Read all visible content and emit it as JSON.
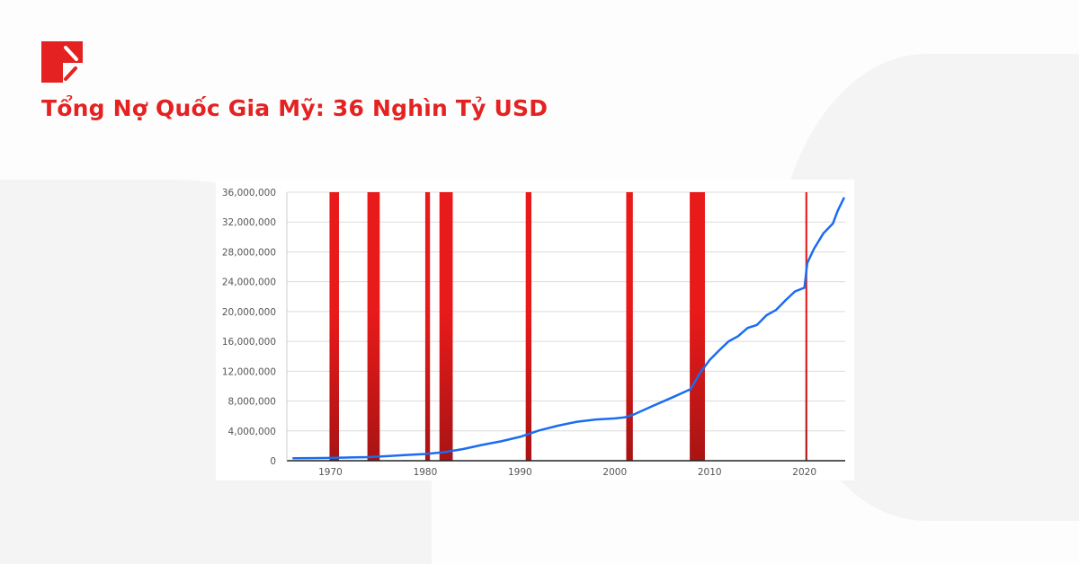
{
  "header": {
    "title": "Tổng Nợ Quốc Gia Mỹ: 36 Nghìn Tỷ USD",
    "brand_color": "#e42222"
  },
  "chart_data": {
    "type": "line",
    "title": "",
    "xlabel": "",
    "ylabel": "",
    "xlim": [
      1965.4,
      2024.3
    ],
    "ylim": [
      0,
      36000000
    ],
    "grid": true,
    "x_ticks": [
      "1970",
      "1980",
      "1990",
      "2000",
      "2010",
      "2020"
    ],
    "y_ticks": [
      "0",
      "4,000,000",
      "8,000,000",
      "12,000,000",
      "16,000,000",
      "20,000,000",
      "24,000,000",
      "28,000,000",
      "32,000,000",
      "36,000,000"
    ],
    "line_color": "#1a6cf0",
    "recession_color": "#e81a1a",
    "recessions": [
      [
        1969.9,
        1970.9
      ],
      [
        1973.9,
        1975.2
      ],
      [
        1980.0,
        1980.5
      ],
      [
        1981.5,
        1982.9
      ],
      [
        1990.6,
        1991.2
      ],
      [
        2001.2,
        2001.9
      ],
      [
        2007.9,
        2009.5
      ],
      [
        2020.1,
        2020.3
      ]
    ],
    "series": [
      {
        "x": [
          1966,
          1968,
          1970,
          1972,
          1974,
          1976,
          1978,
          1980,
          1982,
          1984,
          1986,
          1988,
          1990,
          1992,
          1994,
          1996,
          1998,
          2000,
          2001,
          2002,
          2004,
          2006,
          2008,
          2009,
          2010,
          2011,
          2012,
          2013,
          2014,
          2015,
          2016,
          2017,
          2018,
          2019,
          2020,
          2020.3,
          2021,
          2022,
          2023,
          2023.5,
          2024.2
        ],
        "y": [
          320000,
          350000,
          370000,
          430000,
          480000,
          620000,
          770000,
          900000,
          1140000,
          1570000,
          2120000,
          2600000,
          3200000,
          4060000,
          4690000,
          5220000,
          5530000,
          5670000,
          5800000,
          6200000,
          7350000,
          8450000,
          9600000,
          11800000,
          13500000,
          14800000,
          16000000,
          16700000,
          17800000,
          18200000,
          19500000,
          20200000,
          21500000,
          22700000,
          23200000,
          26500000,
          28400000,
          30500000,
          31800000,
          33500000,
          35300000
        ]
      }
    ]
  }
}
